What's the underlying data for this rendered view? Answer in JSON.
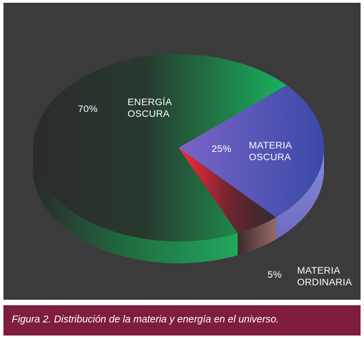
{
  "chart_data": {
    "type": "pie",
    "title": "",
    "slices": [
      {
        "name": "ENERGÍA OSCURA",
        "value": 70,
        "value_label": "70%",
        "color": "#1db462"
      },
      {
        "name": "MATERIA OSCURA",
        "value": 25,
        "value_label": "25%",
        "color": "#5856c2"
      },
      {
        "name": "MATERIA ORDINARIA",
        "value": 5,
        "value_label": "5%",
        "color": "#e42a3a"
      }
    ],
    "style": "3d-tilted",
    "legend": "none"
  },
  "labels": {
    "dark_energy_pct": "70%",
    "dark_energy_line1": "ENERGÍA",
    "dark_energy_line2": "OSCURA",
    "dark_matter_pct": "25%",
    "dark_matter_line1": "MATERIA",
    "dark_matter_line2": "OSCURA",
    "ordinary_matter_pct": "5%",
    "ordinary_matter_line1": "MATERIA",
    "ordinary_matter_line2": "ORDINARIA"
  },
  "caption": "Figura 2. Distribución de la materia y energía en el universo.",
  "colors": {
    "panel_background": "#3b3b3b",
    "caption_background": "#7e1d3c"
  }
}
